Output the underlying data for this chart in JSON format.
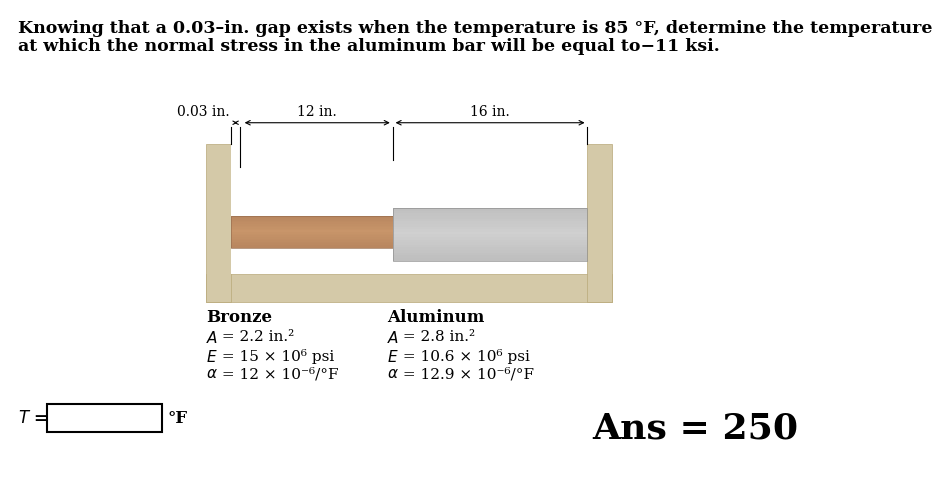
{
  "title_line1": "Knowing that a 0.03–in. gap exists when the temperature is 85 °F, determine the temperature",
  "title_line2": "at which the normal stress in the aluminum bar will be equal to−11 ksi.",
  "bg_color": "#ffffff",
  "bronze_color_light": "#d4a882",
  "bronze_color_dark": "#b8845a",
  "aluminum_color_light": "#d8d8d8",
  "aluminum_color_dark": "#a8a8a8",
  "wall_color": "#d4c9a8",
  "gap_label": "0.03 in.",
  "bronze_length_label": "12 in.",
  "aluminum_length_label": "16 in.",
  "bronze_title": "Bronze",
  "aluminum_title": "Aluminum",
  "bronze_A": "A = 2.2 in.",
  "bronze_E": "E = 15 × 10",
  "bronze_alpha": "α = 12 × 10",
  "aluminum_A": "A = 2.8 in.",
  "aluminum_E": "E = 10.6 × 10",
  "aluminum_alpha": "α = 12.9 × 10",
  "T_label": "T =",
  "T_unit": "°F",
  "ans_label": "Ans = 250"
}
